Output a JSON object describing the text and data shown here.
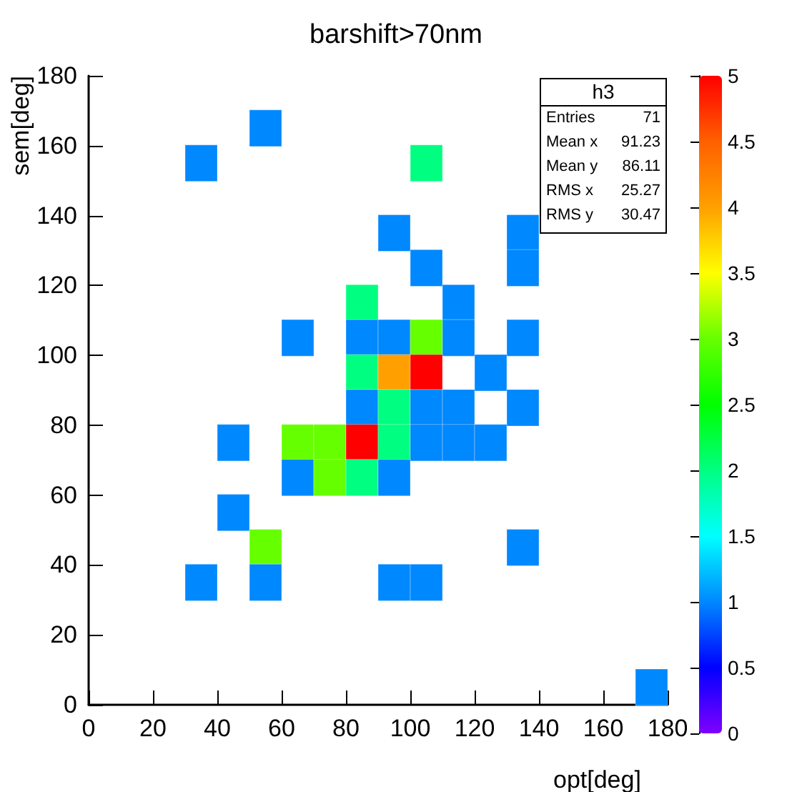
{
  "chart_data": {
    "type": "scatter",
    "title": "barshift>70nm",
    "xlabel": "opt[deg]",
    "ylabel": "sem[deg]",
    "marker": "square",
    "x": [
      55,
      35,
      105,
      95,
      135,
      105,
      135,
      85,
      115,
      65,
      85,
      95,
      105,
      115,
      135,
      85,
      95,
      105,
      125,
      85,
      95,
      105,
      115,
      135,
      45,
      65,
      75,
      85,
      95,
      105,
      115,
      125,
      65,
      75,
      85,
      95,
      45,
      55,
      135,
      35,
      55,
      95,
      105,
      175
    ],
    "values": [
      165,
      155,
      155,
      135,
      135,
      125,
      125,
      115,
      115,
      105,
      105,
      105,
      105,
      105,
      105,
      95,
      95,
      95,
      95,
      85,
      85,
      85,
      85,
      85,
      75,
      75,
      75,
      75,
      75,
      75,
      75,
      75,
      65,
      65,
      65,
      65,
      55,
      45,
      45,
      35,
      35,
      35,
      35,
      5
    ],
    "cvalues": [
      1,
      1,
      2,
      1,
      1,
      1,
      1,
      2,
      1,
      1,
      1,
      1,
      3,
      1,
      1,
      2,
      4,
      5,
      1,
      1,
      2,
      1,
      1,
      1,
      1,
      3,
      3,
      5,
      2,
      1,
      1,
      1,
      1,
      3,
      2,
      1,
      1,
      3,
      1,
      1,
      1,
      1,
      1,
      1
    ],
    "xlim": [
      0,
      180
    ],
    "xticks": [
      0,
      20,
      40,
      60,
      80,
      100,
      120,
      140,
      160,
      180
    ],
    "ylim": [
      0,
      180
    ],
    "yticks": [
      0,
      20,
      40,
      60,
      80,
      100,
      120,
      140,
      160,
      180
    ],
    "clim": [
      0,
      5
    ],
    "cticks": [
      0,
      0.5,
      1,
      1.5,
      2,
      2.5,
      3,
      3.5,
      4,
      4.5,
      5
    ],
    "annotations": [
      "h3",
      "Entries",
      "71",
      "Mean x",
      "91.23",
      "Mean y",
      "86.11",
      "RMS x",
      "25.27",
      "RMS y",
      "30.47"
    ]
  }
}
